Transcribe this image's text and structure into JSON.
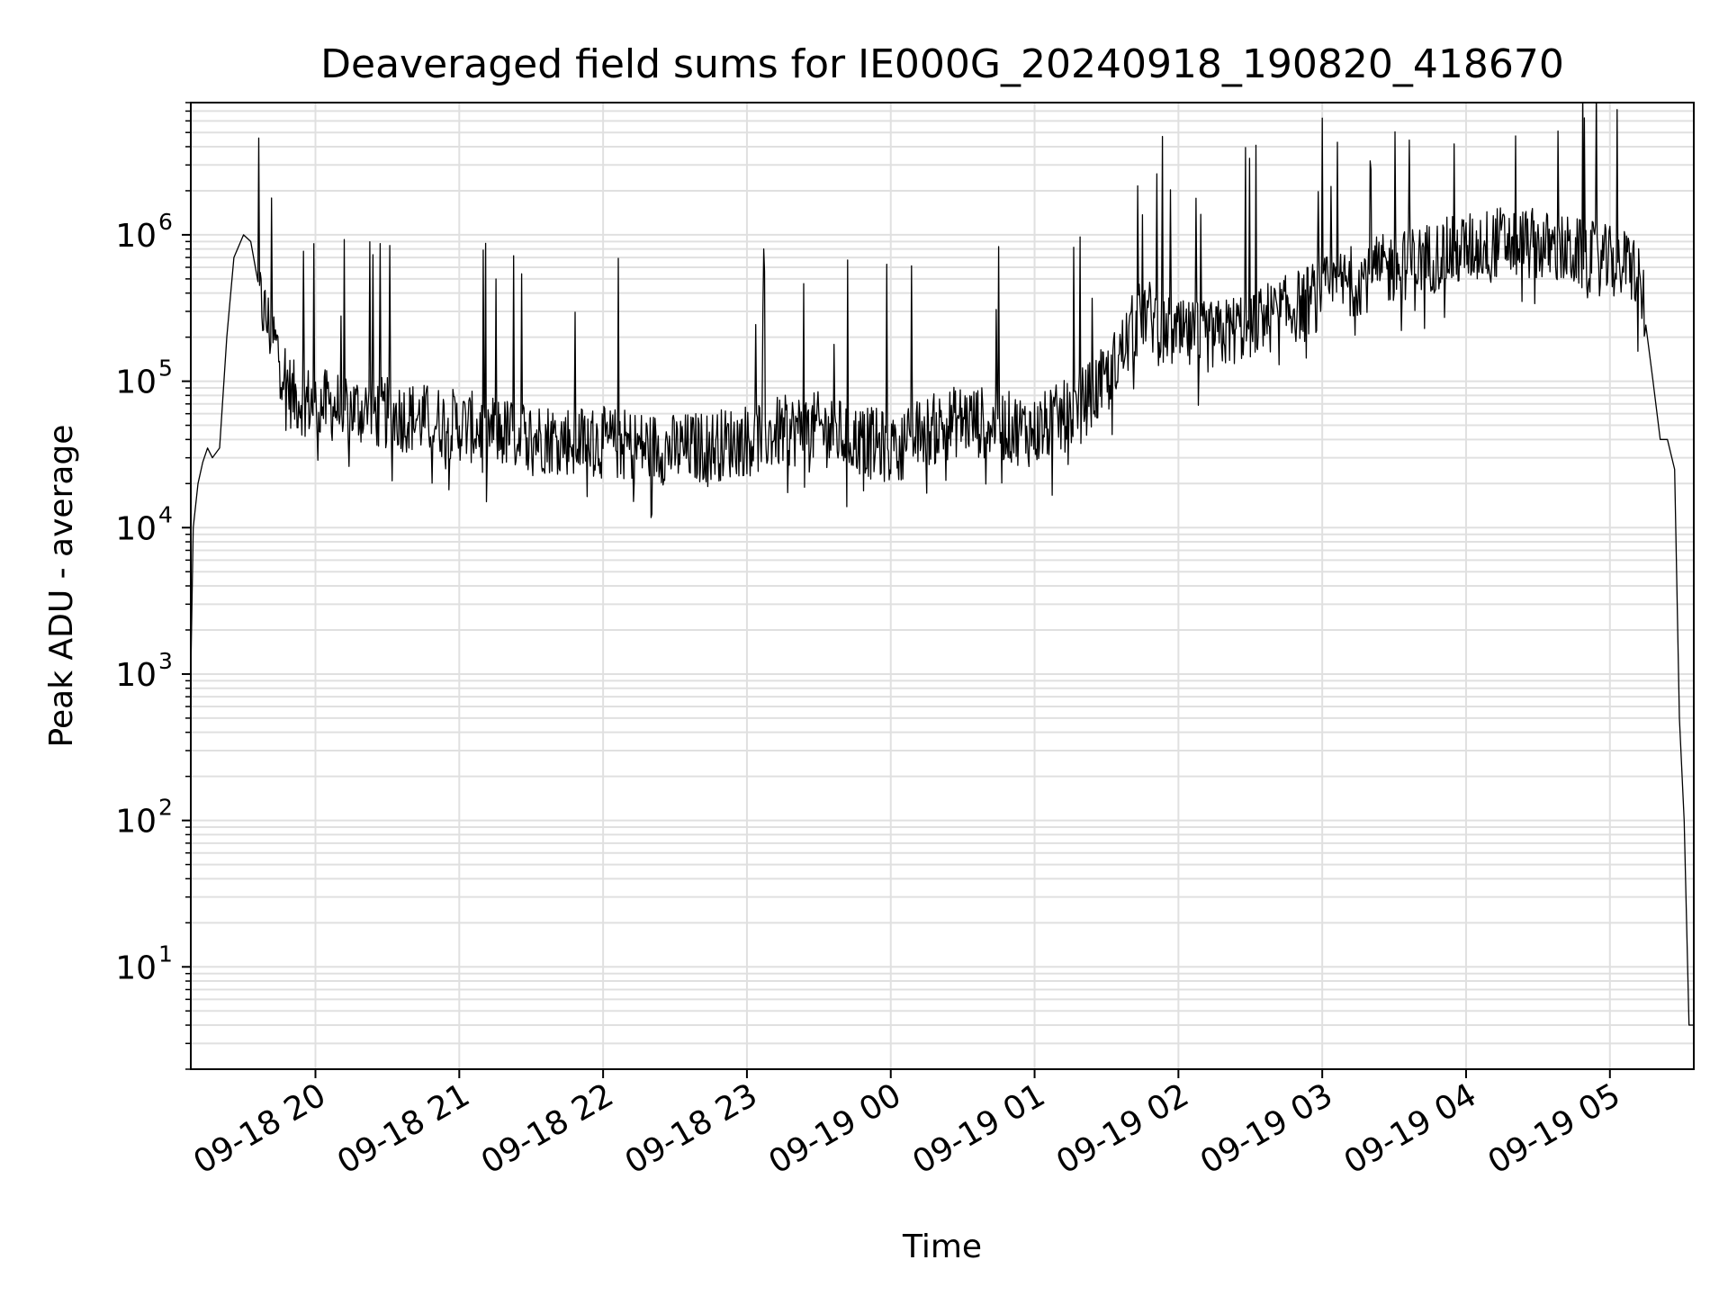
{
  "chart_data": {
    "type": "line",
    "title": "Deaveraged field sums for IE000G_20240918_190820_418670",
    "xlabel": "Time",
    "ylabel": "Peak ADU - average",
    "yscale": "log",
    "ylim": [
      2.0,
      8000000
    ],
    "xlim": [
      "2024-09-18 19:08",
      "2024-09-19 05:35"
    ],
    "grid": true,
    "legend": "none",
    "line_color": "#000000",
    "grid_color": "#e0e0e0",
    "x_ticks": [
      {
        "t": "2024-09-18 20:00",
        "label": "09-18 20"
      },
      {
        "t": "2024-09-18 21:00",
        "label": "09-18 21"
      },
      {
        "t": "2024-09-18 22:00",
        "label": "09-18 22"
      },
      {
        "t": "2024-09-18 23:00",
        "label": "09-18 23"
      },
      {
        "t": "2024-09-19 00:00",
        "label": "09-19 00"
      },
      {
        "t": "2024-09-19 01:00",
        "label": "09-19 01"
      },
      {
        "t": "2024-09-19 02:00",
        "label": "09-19 02"
      },
      {
        "t": "2024-09-19 03:00",
        "label": "09-19 03"
      },
      {
        "t": "2024-09-19 04:00",
        "label": "09-19 04"
      },
      {
        "t": "2024-09-19 05:00",
        "label": "09-19 05"
      }
    ],
    "y_ticks": [
      {
        "v": 10,
        "base": "10",
        "exp": "1"
      },
      {
        "v": 100,
        "base": "10",
        "exp": "2"
      },
      {
        "v": 1000,
        "base": "10",
        "exp": "3"
      },
      {
        "v": 10000,
        "base": "10",
        "exp": "4"
      },
      {
        "v": 100000,
        "base": "10",
        "exp": "5"
      },
      {
        "v": 1000000,
        "base": "10",
        "exp": "6"
      }
    ],
    "series": [
      {
        "x": [
          "2024-09-18 19:08",
          "2024-09-18 19:09",
          "2024-09-18 19:11",
          "2024-09-18 19:13",
          "2024-09-18 19:15",
          "2024-09-18 19:17",
          "2024-09-18 19:20",
          "2024-09-18 19:23",
          "2024-09-18 19:26",
          "2024-09-18 19:30",
          "2024-09-18 19:33",
          "2024-09-18 19:36",
          "2024-09-18 19:40",
          "2024-09-18 19:45",
          "2024-09-18 19:50",
          "2024-09-18 20:00",
          "2024-09-18 20:15",
          "2024-09-18 20:30",
          "2024-09-18 20:45",
          "2024-09-18 21:00",
          "2024-09-18 21:15",
          "2024-09-18 21:30",
          "2024-09-18 21:45",
          "2024-09-18 22:00",
          "2024-09-18 22:15",
          "2024-09-18 22:30",
          "2024-09-18 22:45",
          "2024-09-18 23:00",
          "2024-09-18 23:15",
          "2024-09-18 23:30",
          "2024-09-18 23:45",
          "2024-09-19 00:00",
          "2024-09-19 00:15",
          "2024-09-19 00:30",
          "2024-09-19 00:45",
          "2024-09-19 01:00",
          "2024-09-19 01:15",
          "2024-09-19 01:30",
          "2024-09-19 01:45",
          "2024-09-19 02:00",
          "2024-09-19 02:15",
          "2024-09-19 02:30",
          "2024-09-19 02:45",
          "2024-09-19 03:00",
          "2024-09-19 03:15",
          "2024-09-19 03:30",
          "2024-09-19 03:45",
          "2024-09-19 04:00",
          "2024-09-19 04:15",
          "2024-09-19 04:30",
          "2024-09-19 04:45",
          "2024-09-19 05:00",
          "2024-09-19 05:10",
          "2024-09-19 05:15",
          "2024-09-19 05:18",
          "2024-09-19 05:21",
          "2024-09-19 05:24",
          "2024-09-19 05:27",
          "2024-09-19 05:29",
          "2024-09-19 05:31",
          "2024-09-19 05:33",
          "2024-09-19 05:35"
        ],
        "y": [
          1000,
          10000,
          20000,
          28000,
          35000,
          30000,
          35000,
          200000,
          700000,
          1000000,
          900000,
          400000,
          250000,
          150000,
          80000,
          70000,
          65000,
          60000,
          55000,
          50000,
          45000,
          42000,
          40000,
          38000,
          36000,
          34000,
          36000,
          40000,
          45000,
          48000,
          40000,
          35000,
          45000,
          55000,
          50000,
          45000,
          60000,
          100000,
          300000,
          200000,
          200000,
          250000,
          300000,
          400000,
          500000,
          600000,
          700000,
          800000,
          900000,
          850000,
          750000,
          650000,
          600000,
          300000,
          100000,
          40000,
          40000,
          25000,
          500,
          100,
          4,
          4
        ]
      }
    ]
  }
}
